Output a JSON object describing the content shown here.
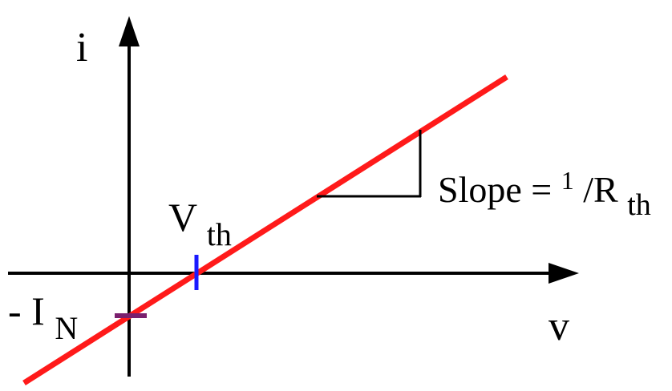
{
  "diagram": {
    "axes": {
      "y_label": "i",
      "x_label": "v"
    },
    "line_color": "#ff1a1a",
    "axis_color": "#000000",
    "vth_marker_color": "#1a1aff",
    "in_marker_color": "#7a1f6e",
    "labels": {
      "vth_main": "V",
      "vth_sub": "th",
      "in_prefix": "- I",
      "in_sub": "N",
      "slope_text": "Slope = ",
      "slope_num": "1",
      "slope_slash": "/R",
      "slope_sub": "th"
    }
  }
}
